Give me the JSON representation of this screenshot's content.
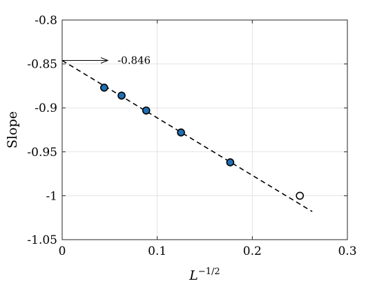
{
  "chart_data": {
    "type": "scatter",
    "title": "",
    "xlabel": "L",
    "xlabel_sup": "−1/2",
    "ylabel": "Slope",
    "xlim": [
      0,
      0.3
    ],
    "ylim": [
      -1.05,
      -0.8
    ],
    "xticks": [
      0,
      0.1,
      0.2,
      0.3
    ],
    "xtick_labels": [
      "0",
      "0.1",
      "0.2",
      "0.3"
    ],
    "yticks": [
      -0.8,
      -0.85,
      -0.9,
      -0.95,
      -1,
      -1.05
    ],
    "ytick_labels": [
      "-0.8",
      "-0.85",
      "-0.9",
      "-0.95",
      "-1",
      "-1.05"
    ],
    "grid": true,
    "series": [
      {
        "marker": "filled-circle",
        "color": "#1f6fb5",
        "x": [
          0.0442,
          0.0625,
          0.0884,
          0.125,
          0.1768
        ],
        "y": [
          -0.877,
          -0.886,
          -0.903,
          -0.928,
          -0.962
        ]
      },
      {
        "marker": "open-circle",
        "color": "#ffffff",
        "x": [
          0.25
        ],
        "y": [
          -1.0
        ]
      }
    ],
    "fit_line": {
      "style": "dashed",
      "x": [
        0,
        0.263
      ],
      "y": [
        -0.846,
        -1.018
      ]
    },
    "annotation": {
      "text": "-0.846",
      "arrow_from": [
        0,
        -0.846
      ],
      "arrow_to": [
        0.048,
        -0.846
      ]
    }
  }
}
